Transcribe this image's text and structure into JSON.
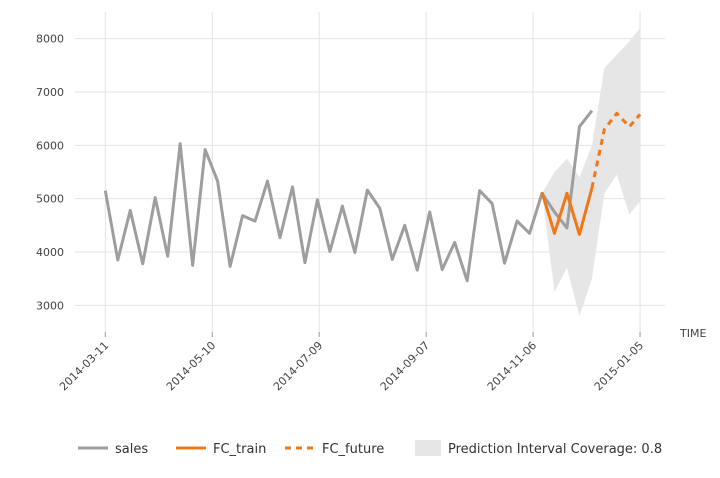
{
  "chart_data": {
    "type": "line",
    "x_label": "TIME",
    "xlim": [
      "2014-02-22",
      "2015-01-19"
    ],
    "xticks": [
      "2014-03-11",
      "2014-05-10",
      "2014-07-09",
      "2014-09-07",
      "2014-11-06",
      "2015-01-05"
    ],
    "ylim": [
      2500,
      8500
    ],
    "yticks": [
      3000,
      4000,
      5000,
      6000,
      7000,
      8000
    ],
    "grid": true,
    "legend": "bottom",
    "series": [
      {
        "name": "sales",
        "color": "#9e9e9e",
        "x": [
          "2014-03-11",
          "2014-03-18",
          "2014-03-25",
          "2014-04-01",
          "2014-04-08",
          "2014-04-15",
          "2014-04-22",
          "2014-04-29",
          "2014-05-06",
          "2014-05-13",
          "2014-05-20",
          "2014-05-27",
          "2014-06-03",
          "2014-06-10",
          "2014-06-17",
          "2014-06-24",
          "2014-07-01",
          "2014-07-08",
          "2014-07-15",
          "2014-07-22",
          "2014-07-29",
          "2014-08-05",
          "2014-08-12",
          "2014-08-19",
          "2014-08-26",
          "2014-09-02",
          "2014-09-09",
          "2014-09-16",
          "2014-09-23",
          "2014-09-30",
          "2014-10-07",
          "2014-10-14",
          "2014-10-21",
          "2014-10-28",
          "2014-11-04",
          "2014-11-11",
          "2014-11-18",
          "2014-11-25",
          "2014-12-02",
          "2014-12-09"
        ],
        "values": [
          5150,
          3850,
          4780,
          3780,
          5020,
          3920,
          6030,
          3750,
          5920,
          5330,
          3730,
          4680,
          4580,
          5330,
          4270,
          5220,
          3800,
          4980,
          4010,
          4860,
          3990,
          5160,
          4820,
          3860,
          4500,
          3660,
          4750,
          3670,
          4180,
          3460,
          5150,
          4910,
          3790,
          4580,
          4350,
          5100,
          4750,
          4450,
          6350,
          6650
        ]
      },
      {
        "name": "FC_train",
        "color": "#f07818",
        "x": [
          "2014-11-11",
          "2014-11-18",
          "2014-11-25",
          "2014-12-02",
          "2014-12-09"
        ],
        "values": [
          5120,
          4350,
          5100,
          4330,
          5200
        ]
      },
      {
        "name": "FC_future",
        "color": "#f07818",
        "dashed": true,
        "x": [
          "2014-12-09",
          "2014-12-16",
          "2014-12-23",
          "2014-12-30",
          "2015-01-05"
        ],
        "values": [
          5200,
          6300,
          6600,
          6350,
          6580
        ]
      },
      {
        "name": "Prediction Interval Coverage: 0.8",
        "type": "band",
        "color": "#e6e6e6",
        "x": [
          "2014-11-11",
          "2014-11-18",
          "2014-11-25",
          "2014-12-02",
          "2014-12-09",
          "2014-12-16",
          "2014-12-23",
          "2014-12-30",
          "2015-01-05"
        ],
        "lower": [
          5100,
          3250,
          3700,
          2800,
          3500,
          5100,
          5450,
          4700,
          4950
        ],
        "upper": [
          5100,
          5500,
          5750,
          5400,
          6000,
          7450,
          7700,
          7950,
          8200
        ]
      }
    ]
  }
}
